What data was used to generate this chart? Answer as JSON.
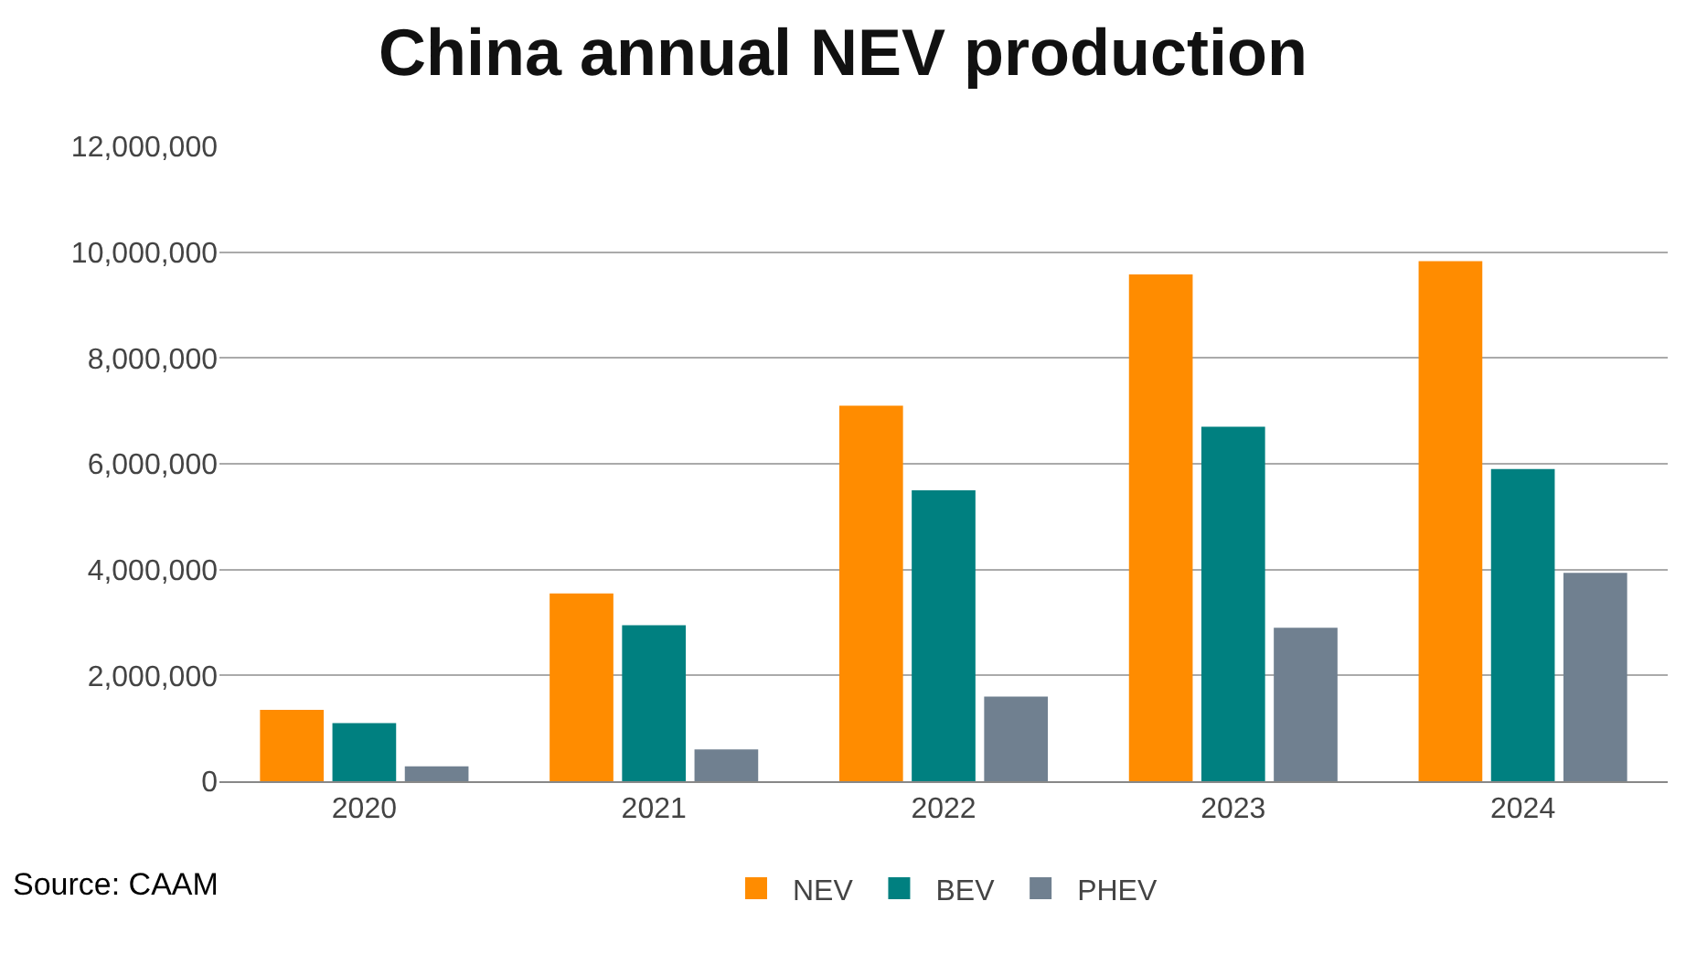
{
  "chart_data": {
    "type": "bar",
    "title": "China annual NEV production",
    "categories": [
      "2020",
      "2021",
      "2022",
      "2023",
      "2024"
    ],
    "series": [
      {
        "name": "NEV",
        "color": "#ff8c00",
        "values": [
          1350000,
          3550000,
          7100000,
          9580000,
          9830000
        ]
      },
      {
        "name": "BEV",
        "color": "#008080",
        "values": [
          1100000,
          2950000,
          5500000,
          6700000,
          5900000
        ]
      },
      {
        "name": "PHEV",
        "color": "#708090",
        "values": [
          280000,
          600000,
          1600000,
          2900000,
          3940000
        ]
      }
    ],
    "ylim": [
      0,
      12000000
    ],
    "yticks": [
      {
        "value": 0,
        "label": "0"
      },
      {
        "value": 2000000,
        "label": "2,000,000"
      },
      {
        "value": 4000000,
        "label": "4,000,000"
      },
      {
        "value": 6000000,
        "label": "6,000,000"
      },
      {
        "value": 8000000,
        "label": "8,000,000"
      },
      {
        "value": 10000000,
        "label": "10,000,000"
      },
      {
        "value": 12000000,
        "label": "12,000,000"
      }
    ],
    "grid": "y",
    "legend": "bottom",
    "annotations": [
      "Source: CAAM"
    ]
  }
}
